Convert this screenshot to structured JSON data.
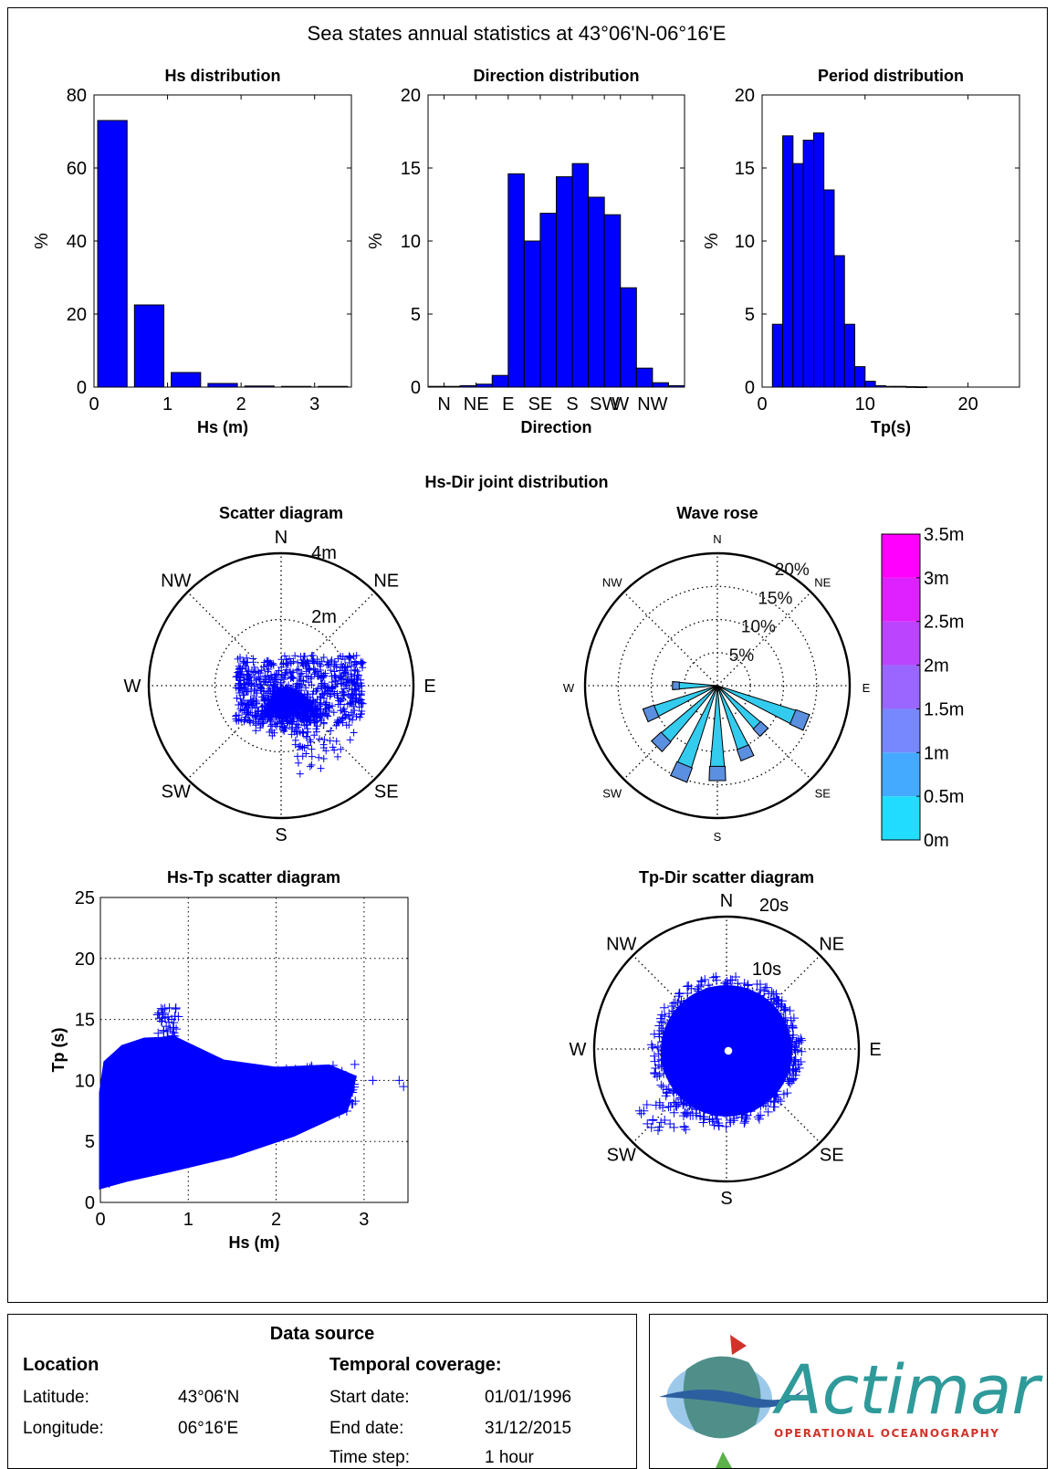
{
  "figure": {
    "title": "Sea states annual statistics at 43°06'N-06°16'E",
    "joint_title": "Hs-Dir joint distribution"
  },
  "colors": {
    "bars": "#0000ff",
    "scatter": "#0000ff",
    "rose_cyan": "#33ccee",
    "colorbar": [
      "#00ffff",
      "#22ddff",
      "#44aaff",
      "#7788ff",
      "#9966ff",
      "#bb44ff",
      "#dd22ff",
      "#ff00ff"
    ]
  },
  "chart_data": [
    {
      "id": "hs-dist",
      "type": "bar",
      "title": "Hs distribution",
      "xlabel": "Hs (m)",
      "ylabel": "%",
      "xlim": [
        0,
        3.5
      ],
      "ylim": [
        0,
        80
      ],
      "xticks": [
        0,
        1,
        2,
        3
      ],
      "yticks": [
        0,
        20,
        40,
        60,
        80
      ],
      "bar_width": 0.4,
      "x": [
        0.25,
        0.75,
        1.25,
        1.75,
        2.25,
        2.75,
        3.25
      ],
      "values": [
        73,
        22.5,
        4,
        1,
        0.3,
        0.2,
        0.2
      ]
    },
    {
      "id": "dir-dist",
      "type": "bar",
      "title": "Direction distribution",
      "xlabel": "Direction",
      "ylabel": "%",
      "xlim": [
        0,
        360
      ],
      "ylim": [
        0,
        20
      ],
      "xticks": [
        22.5,
        67.5,
        112.5,
        157.5,
        202.5,
        247.5,
        270,
        315
      ],
      "xticklabels": [
        "N",
        "NE",
        "E",
        "SE",
        "S",
        "SW",
        "W",
        "NW"
      ],
      "yticks": [
        0,
        5,
        10,
        15,
        20
      ],
      "bar_width": 22.5,
      "x": [
        11.25,
        33.75,
        56.25,
        78.75,
        101.25,
        123.75,
        146.25,
        168.75,
        191.25,
        213.75,
        236.25,
        258.75,
        281.25,
        303.75,
        326.25,
        348.75
      ],
      "values": [
        0.05,
        0.05,
        0.1,
        0.2,
        0.8,
        14.6,
        10,
        11.9,
        14.4,
        15.3,
        13,
        11.8,
        6.8,
        1.3,
        0.3,
        0.1
      ]
    },
    {
      "id": "per-dist",
      "type": "bar",
      "title": "Period distribution",
      "xlabel": "Tp(s)",
      "ylabel": "%",
      "xlim": [
        0,
        25
      ],
      "ylim": [
        0,
        20
      ],
      "xticks": [
        0,
        10,
        20
      ],
      "yticks": [
        0,
        5,
        10,
        15,
        20
      ],
      "bar_width": 1,
      "x": [
        1.5,
        2.5,
        3.5,
        4.5,
        5.5,
        6.5,
        7.5,
        8.5,
        9.5,
        10.5,
        11.5,
        12.5,
        13.5,
        14.5,
        15.5
      ],
      "values": [
        4.3,
        17.2,
        15.3,
        16.9,
        17.4,
        13.5,
        9,
        4.3,
        1.4,
        0.4,
        0.1,
        0.05,
        0.05,
        0.03,
        0.02
      ]
    },
    {
      "id": "hsdir-scatter",
      "type": "scatter",
      "title": "Scatter diagram",
      "radial_max": 4,
      "radial_labels": [
        "2m",
        "4m"
      ],
      "directions": [
        "N",
        "NE",
        "E",
        "SE",
        "S",
        "SW",
        "W",
        "NW"
      ],
      "cloud": {
        "hs_range": [
          0,
          2.8
        ],
        "dir_range": [
          100,
          240
        ]
      }
    },
    {
      "id": "wave-rose",
      "type": "rose",
      "title": "Wave rose",
      "rings_pct": [
        5,
        10,
        15,
        20
      ],
      "ring_labels": [
        "5%",
        "10%",
        "15%",
        "20%"
      ],
      "directions": [
        "N",
        "NE",
        "E",
        "SE",
        "S",
        "SW",
        "W",
        "NW"
      ],
      "petal_dir_deg": [
        112.5,
        135,
        157.5,
        180,
        202.5,
        225,
        247.5,
        270
      ],
      "petal_pct": [
        14.6,
        10,
        11.9,
        14.4,
        15.3,
        13,
        11.8,
        6.8
      ],
      "colorbar": {
        "label_values": [
          "0m",
          "0.5m",
          "1m",
          "1.5m",
          "2m",
          "2.5m",
          "3m",
          "3.5m"
        ]
      }
    },
    {
      "id": "hstp-scatter",
      "type": "scatter",
      "title": "Hs-Tp scatter diagram",
      "xlabel": "Hs (m)",
      "ylabel": "Tp (s)",
      "xlim": [
        0,
        3.5
      ],
      "ylim": [
        0,
        25
      ],
      "xticks": [
        0,
        1,
        2,
        3
      ],
      "yticks": [
        0,
        5,
        10,
        15,
        20,
        25
      ],
      "outliers": [
        [
          3.1,
          10
        ],
        [
          3.4,
          10
        ],
        [
          3.45,
          9.5
        ],
        [
          2.9,
          8.3
        ]
      ]
    },
    {
      "id": "tpdir-scatter",
      "type": "scatter",
      "title": "Tp-Dir scatter diagram",
      "radial_max": 20,
      "radial_labels": [
        "10s",
        "20s"
      ],
      "directions": [
        "N",
        "NE",
        "E",
        "SE",
        "S",
        "SW",
        "W",
        "NW"
      ]
    }
  ],
  "source": {
    "title": "Data source",
    "location_heading": "Location",
    "lat_label": "Latitude:",
    "lat_value": "43°06'N",
    "lon_label": "Longitude:",
    "lon_value": "06°16'E",
    "coverage_heading": "Temporal coverage:",
    "start_label": "Start date:",
    "start_value": "01/01/1996",
    "end_label": "End date:",
    "end_value": "31/12/2015",
    "step_label": "Time step:",
    "step_value": "1 hour"
  },
  "logo": {
    "name": "Actimar",
    "tagline": "OPERATIONAL OCEANOGRAPHY"
  }
}
